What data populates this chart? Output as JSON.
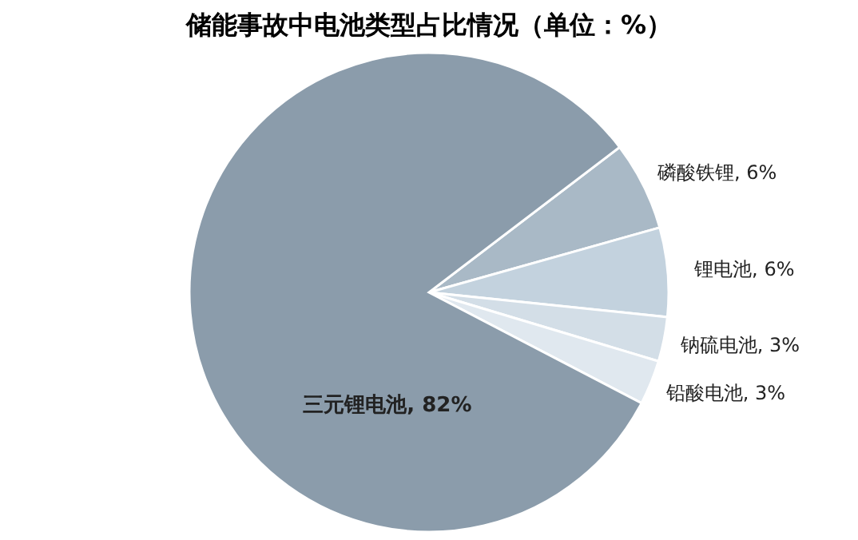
{
  "chart_data": {
    "type": "pie",
    "title": "储能事故中电池类型占比情况（单位：%）",
    "categories": [
      "磷酸铁锂",
      "锂电池",
      "钠硫电池",
      "铅酸电池",
      "三元锂电池"
    ],
    "values": [
      6,
      6,
      3,
      3,
      82
    ],
    "value_labels": [
      "6%",
      "6%",
      "3%",
      "3%",
      "82%"
    ],
    "colors": [
      "#a9b9c6",
      "#c3d2de",
      "#d3dee7",
      "#e0e8ef",
      "#8b9cab"
    ],
    "legend": false
  }
}
